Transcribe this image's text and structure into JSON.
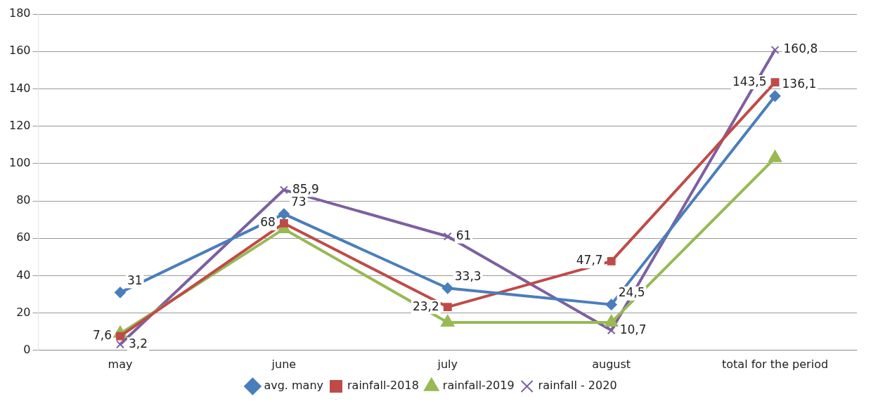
{
  "chart_data": {
    "type": "line",
    "categories": [
      "may",
      "june",
      "july",
      "august",
      "total for the period"
    ],
    "series": [
      {
        "name": "avg. many",
        "color": "#4a7ebb",
        "marker": "diamond",
        "values": [
          31,
          73,
          33.3,
          24.5,
          136.1
        ],
        "value_labels": [
          "31",
          "73",
          "33,3",
          "24,5",
          "136,1"
        ]
      },
      {
        "name": "rainfall-2018",
        "color": "#be4b48",
        "marker": "square",
        "values": [
          7.6,
          68,
          23.2,
          47.7,
          143.5
        ],
        "value_labels": [
          "7,6",
          "68",
          "23,2",
          "47,7",
          "143,5"
        ]
      },
      {
        "name": "rainfall-2019",
        "color": "#98b954",
        "marker": "triangle",
        "values": [
          9,
          65,
          15,
          15,
          103
        ]
      },
      {
        "name": "rainfall - 2020",
        "color": "#7d60a0",
        "marker": "cross",
        "values": [
          3.2,
          85.9,
          61,
          10.7,
          160.8
        ],
        "value_labels": [
          "3,2",
          "85,9",
          "61",
          "10,7",
          "160,8"
        ]
      }
    ],
    "ylim": [
      0,
      180
    ],
    "yticks": [
      0,
      20,
      40,
      60,
      80,
      100,
      120,
      140,
      160,
      180
    ],
    "grid": "y",
    "legend": "bottom"
  }
}
